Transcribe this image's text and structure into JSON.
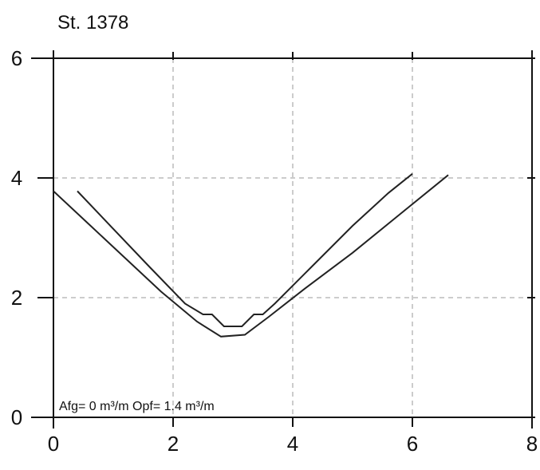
{
  "chart_data": {
    "type": "line",
    "title": "St. 1378",
    "annotation": "Afg= 0 m³/m  Opf= 1.4 m³/m",
    "xlabel": "",
    "ylabel": "",
    "xlim": [
      0,
      8
    ],
    "ylim": [
      0,
      6
    ],
    "xticks": [
      0,
      2,
      4,
      6,
      8
    ],
    "yticks": [
      0,
      2,
      4,
      6
    ],
    "grid": true,
    "colors": {
      "line": "#222222",
      "grid": "#9a9a9a",
      "axis": "#111111"
    },
    "series": [
      {
        "x": [
          0.0,
          0.6,
          1.2,
          1.8,
          2.4,
          2.8,
          3.2,
          3.6,
          4.2,
          5.0,
          5.8,
          6.6
        ],
        "y": [
          3.78,
          3.22,
          2.66,
          2.1,
          1.6,
          1.35,
          1.38,
          1.68,
          2.15,
          2.75,
          3.4,
          4.05
        ]
      },
      {
        "x": [
          0.4,
          1.0,
          1.6,
          2.2,
          2.5,
          2.65,
          2.85,
          3.15,
          3.35,
          3.5,
          3.7,
          4.3,
          5.0,
          5.6,
          6.0
        ],
        "y": [
          3.78,
          3.15,
          2.52,
          1.9,
          1.72,
          1.72,
          1.52,
          1.52,
          1.72,
          1.72,
          1.9,
          2.5,
          3.2,
          3.75,
          4.07
        ]
      }
    ]
  }
}
